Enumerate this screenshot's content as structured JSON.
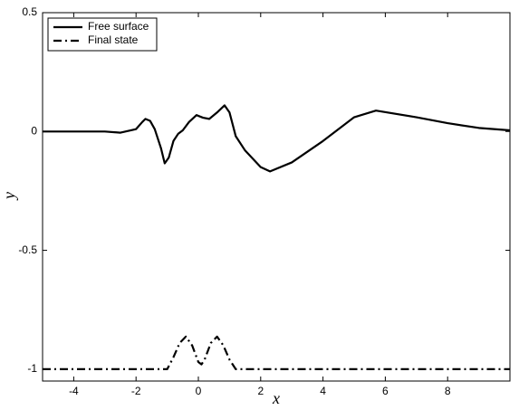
{
  "chart_data": {
    "type": "line",
    "xlabel": "x",
    "ylabel": "y",
    "xlim": [
      -5,
      10
    ],
    "ylim": [
      -1.05,
      0.5
    ],
    "xticks": [
      -4,
      -2,
      0,
      2,
      4,
      6,
      8
    ],
    "yticks": [
      -1,
      -0.5,
      0,
      0.5
    ],
    "grid": false,
    "legend": "upper left",
    "series": [
      {
        "name": "Free surface",
        "color": "#000000",
        "style": "solid",
        "x": [
          -5,
          -3,
          -2.5,
          -2,
          -1.8,
          -1.7,
          -1.55,
          -1.4,
          -1.2,
          -1.08,
          -0.95,
          -0.8,
          -0.65,
          -0.5,
          -0.3,
          -0.06,
          0.15,
          0.35,
          0.6,
          0.84,
          1.0,
          1.2,
          1.5,
          2.0,
          2.3,
          3,
          4,
          5,
          5.7,
          7,
          8,
          9,
          10
        ],
        "values": [
          0,
          0,
          -0.005,
          0.01,
          0.04,
          0.053,
          0.045,
          0.01,
          -0.07,
          -0.134,
          -0.11,
          -0.04,
          -0.01,
          0.005,
          0.04,
          0.069,
          0.058,
          0.053,
          0.08,
          0.11,
          0.08,
          -0.02,
          -0.08,
          -0.15,
          -0.168,
          -0.13,
          -0.04,
          0.06,
          0.088,
          0.06,
          0.035,
          0.015,
          0.005
        ]
      },
      {
        "name": "Final state",
        "color": "#000000",
        "style": "dashdot",
        "x": [
          -5,
          -1,
          -0.8,
          -0.6,
          -0.4,
          -0.2,
          0,
          0.1,
          0.2,
          0.4,
          0.6,
          0.8,
          1.0,
          1.2,
          10
        ],
        "values": [
          -1,
          -1,
          -0.95,
          -0.89,
          -0.863,
          -0.9,
          -0.97,
          -0.98,
          -0.96,
          -0.89,
          -0.863,
          -0.9,
          -0.96,
          -1,
          -1
        ]
      }
    ]
  }
}
